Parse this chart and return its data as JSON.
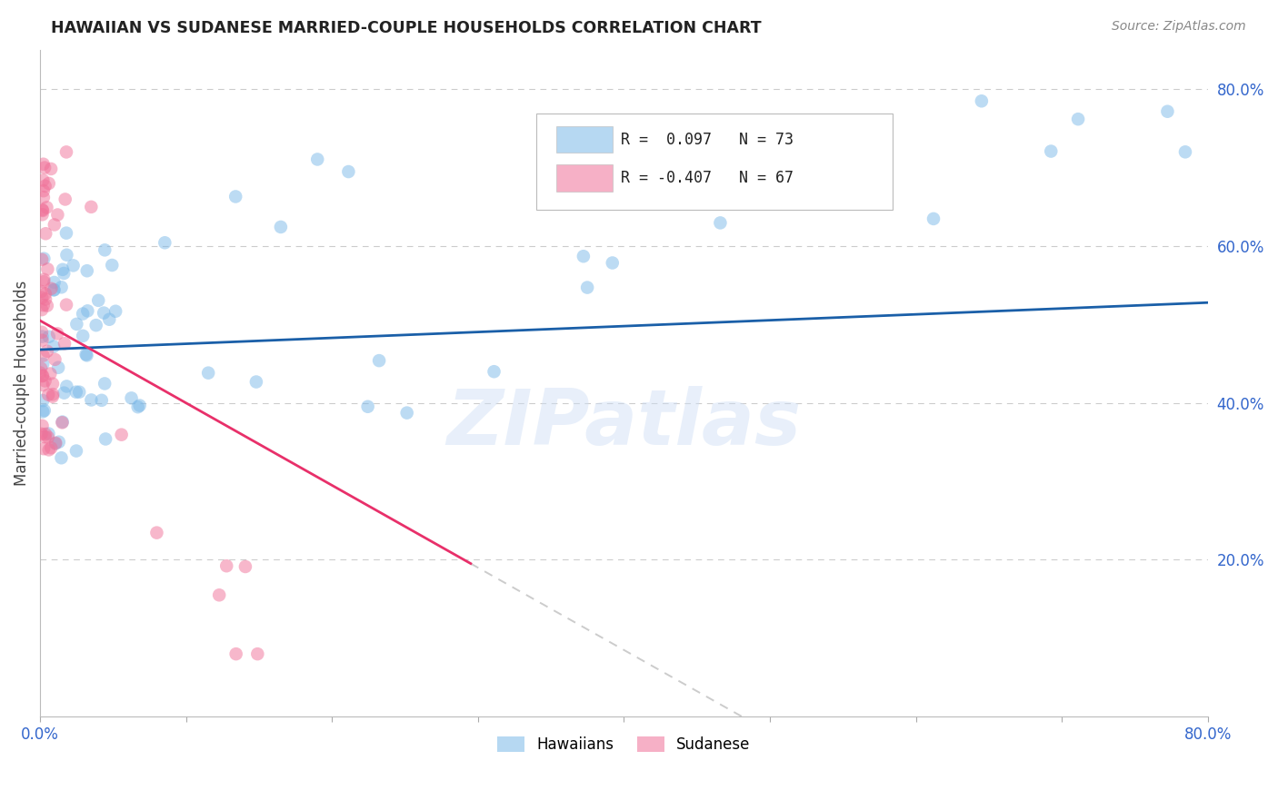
{
  "title": "HAWAIIAN VS SUDANESE MARRIED-COUPLE HOUSEHOLDS CORRELATION CHART",
  "source": "Source: ZipAtlas.com",
  "ylabel": "Married-couple Households",
  "right_yticks": [
    "80.0%",
    "60.0%",
    "40.0%",
    "20.0%"
  ],
  "right_ytick_vals": [
    0.8,
    0.6,
    0.4,
    0.2
  ],
  "watermark": "ZIPatlas",
  "hawaiians_color": "#7ab8e8",
  "sudanese_color": "#f07098",
  "trend_hawaiians_color": "#1a5fa8",
  "trend_sudanese_color": "#e8306a",
  "trend_dashed_color": "#cccccc",
  "xlim": [
    0.0,
    0.8
  ],
  "ylim": [
    0.0,
    0.85
  ],
  "background_color": "#ffffff",
  "grid_color": "#cccccc",
  "hawaiians_N": 73,
  "sudanese_N": 67,
  "hawaiians_R": 0.097,
  "sudanese_R": -0.407,
  "legend_text_haw": "R =  0.097   N = 73",
  "legend_text_sud": "R = -0.407   N = 67"
}
